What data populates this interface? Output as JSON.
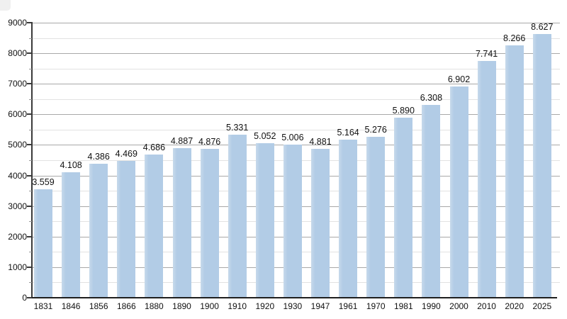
{
  "chart_data": {
    "type": "bar",
    "title": "",
    "categories": [
      "1831",
      "1846",
      "1856",
      "1866",
      "1880",
      "1890",
      "1900",
      "1910",
      "1920",
      "1930",
      "1947",
      "1961",
      "1970",
      "1981",
      "1990",
      "2000",
      "2010",
      "2020",
      "2025"
    ],
    "values": [
      3559,
      4108,
      4386,
      4469,
      4686,
      4887,
      4876,
      5331,
      5052,
      5006,
      4881,
      5164,
      5276,
      5890,
      6308,
      6902,
      7741,
      8266,
      8627
    ],
    "value_labels": [
      "3.559",
      "4.108",
      "4.386",
      "4.469",
      "4.686",
      "4.887",
      "4.876",
      "5.331",
      "5.052",
      "5.006",
      "4.881",
      "5.164",
      "5.276",
      "5.890",
      "6.308",
      "6.902",
      "7.741",
      "8.266",
      "8.627"
    ],
    "y_axis": {
      "min": 0,
      "max": 9000,
      "major_step": 1000,
      "minor_step": 500,
      "tick_labels": [
        "0",
        "1000",
        "2000",
        "3000",
        "4000",
        "5000",
        "6000",
        "7000",
        "8000",
        "9000"
      ]
    },
    "xlabel": "",
    "ylabel": "",
    "grid": {
      "horizontal_major": true,
      "horizontal_minor": true,
      "vertical": false
    },
    "legend": "none",
    "colors": {
      "bar_fill": "#b2cce6",
      "bar_fill_edge": "#c7d9eb",
      "grid_major": "#a8a8a8",
      "grid_minor": "#e2e2e2",
      "axis": "#3a3a3a",
      "text": "#111111",
      "background": "#ffffff",
      "corner_artifact": "#ededed"
    }
  }
}
